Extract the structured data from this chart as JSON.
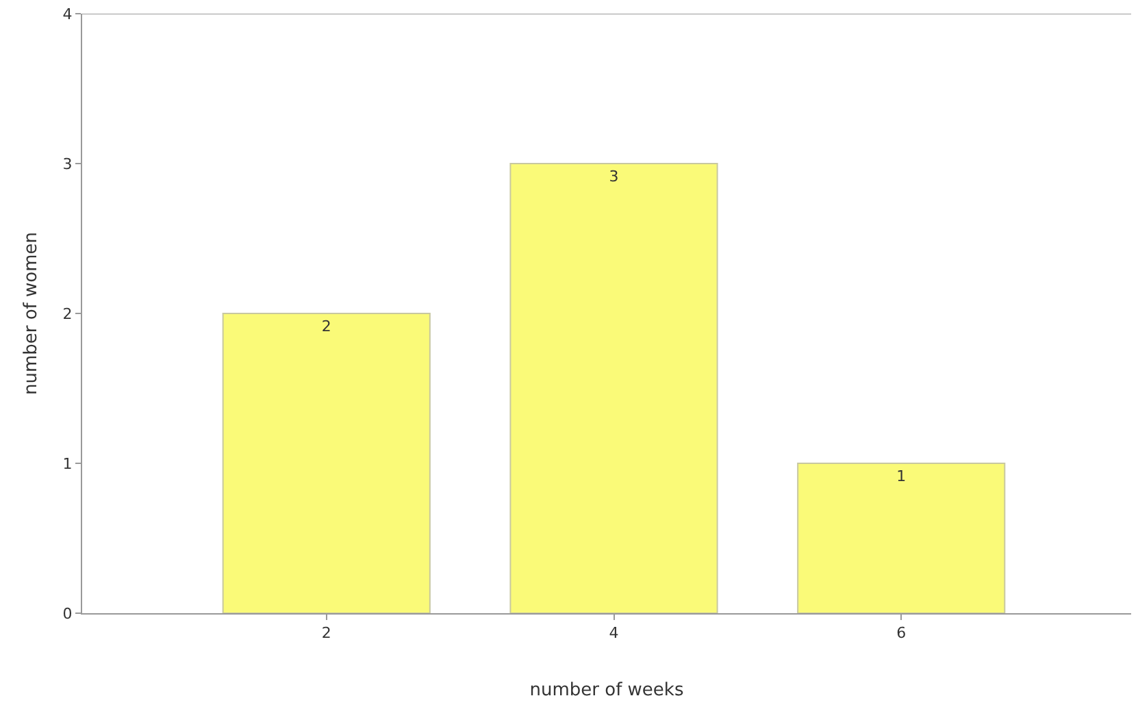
{
  "chart_data": {
    "type": "bar",
    "xlabel": "number of weeks",
    "ylabel": "number of women",
    "categories": [
      "2",
      "4",
      "6"
    ],
    "values": [
      2,
      3,
      1
    ],
    "color": "#fafa78",
    "ylim": [
      0,
      4
    ],
    "yticks": [
      0,
      1,
      2,
      3,
      4
    ],
    "data_labels": true
  }
}
